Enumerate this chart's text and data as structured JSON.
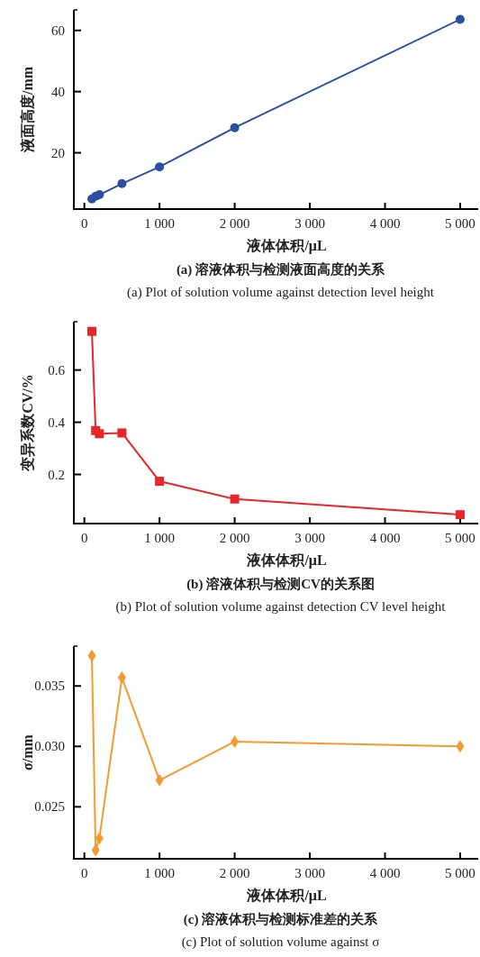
{
  "chart_data": [
    {
      "type": "line",
      "title": "(a) 溶液体积与检测液面高度的关系",
      "subtitle": "(a) Plot of solution volume against detection level height",
      "xlabel": "液体体积/μL",
      "ylabel": "液面高度/mm",
      "marker": "circle",
      "x": [
        100,
        150,
        200,
        500,
        1000,
        2000,
        5000
      ],
      "series": [
        {
          "color": "#2b50a0",
          "values": [
            4.9,
            5.8,
            6.3,
            9.9,
            15.4,
            28.2,
            63.6
          ]
        }
      ],
      "xlim": [
        -140,
        5240
      ],
      "xticks": [
        {
          "value": 0,
          "label": "0"
        },
        {
          "value": 1000,
          "label": "1 000"
        },
        {
          "value": 2000,
          "label": "2 000"
        },
        {
          "value": 3000,
          "label": "3 000"
        },
        {
          "value": 4000,
          "label": "4 000"
        },
        {
          "value": 5000,
          "label": "5 000"
        }
      ],
      "ylim": [
        1.6,
        66.7
      ],
      "yticks": [
        20,
        40,
        60
      ]
    },
    {
      "type": "line",
      "title": "(b) 溶液体积与检测CV的关系图",
      "subtitle": "(b) Plot of solution volume against detection CV level height",
      "xlabel": "液体体积/μL",
      "ylabel": "变异系数CV/%",
      "marker": "square",
      "x": [
        100,
        150,
        200,
        500,
        1000,
        2000,
        5000
      ],
      "series": [
        {
          "color": "#e8262a",
          "values": [
            0.748,
            0.368,
            0.356,
            0.359,
            0.174,
            0.106,
            0.046
          ]
        }
      ],
      "xlim": [
        -140,
        5240
      ],
      "xticks": [
        {
          "value": 0,
          "label": "0"
        },
        {
          "value": 1000,
          "label": "1 000"
        },
        {
          "value": 2000,
          "label": "2 000"
        },
        {
          "value": 3000,
          "label": "3 000"
        },
        {
          "value": 4000,
          "label": "4 000"
        },
        {
          "value": 5000,
          "label": "5 000"
        }
      ],
      "ylim": [
        0.012,
        0.785
      ],
      "yticks": [
        0.2,
        0.4,
        0.6
      ]
    },
    {
      "type": "line",
      "title": "(c) 溶液体积与检测标准差的关系",
      "subtitle": "(c) Plot of solution volume against σ",
      "xlabel": "液体体积/μL",
      "ylabel": "σ/mm",
      "marker": "diamond",
      "x": [
        100,
        150,
        200,
        500,
        1000,
        2000,
        5000
      ],
      "series": [
        {
          "color": "#f39b2e",
          "values": [
            0.0375,
            0.0214,
            0.0224,
            0.0357,
            0.0272,
            0.0304,
            0.03
          ]
        }
      ],
      "xlim": [
        -140,
        5240
      ],
      "xticks": [
        {
          "value": 0,
          "label": "0"
        },
        {
          "value": 1000,
          "label": "1 000"
        },
        {
          "value": 2000,
          "label": "2 000"
        },
        {
          "value": 3000,
          "label": "3 000"
        },
        {
          "value": 4000,
          "label": "4 000"
        },
        {
          "value": 5000,
          "label": "5 000"
        }
      ],
      "ylim": [
        0.0207,
        0.0383
      ],
      "yticks": [
        0.025,
        {
          "value": 0.03,
          "label": "0.030"
        },
        0.035
      ]
    }
  ]
}
